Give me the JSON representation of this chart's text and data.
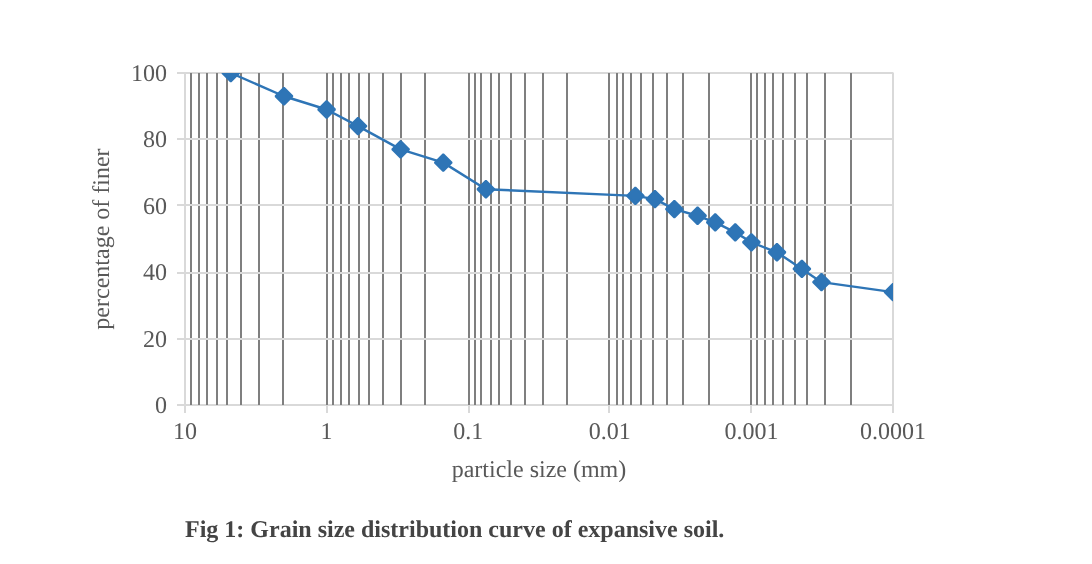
{
  "chart_data": {
    "type": "line",
    "title": "Fig 1: Grain size distribution curve of expansive soil.",
    "xlabel": "particle size (mm)",
    "ylabel": "percentage of finer",
    "x": [
      4.75,
      2.0,
      1.0,
      0.6,
      0.3,
      0.15,
      0.075,
      0.0066,
      0.0048,
      0.0035,
      0.0024,
      0.0018,
      0.0013,
      0.001,
      0.00066,
      0.00044,
      0.00032,
      0.0001
    ],
    "series": [
      {
        "color": "#2e75b6",
        "values": [
          100,
          93,
          89,
          84,
          77,
          73,
          65,
          63,
          62,
          59,
          57,
          55,
          52,
          49,
          46,
          41,
          37,
          34
        ]
      }
    ],
    "log": "x",
    "xlim": [
      10,
      0.0001
    ],
    "xticks": [
      10,
      1,
      0.1,
      0.01,
      0.001,
      0.0001
    ],
    "ylim": [
      0,
      100
    ],
    "yticks": [
      0,
      20,
      40,
      60,
      80,
      100
    ],
    "grid": true,
    "marker": "diamond",
    "line_style": "solid"
  }
}
